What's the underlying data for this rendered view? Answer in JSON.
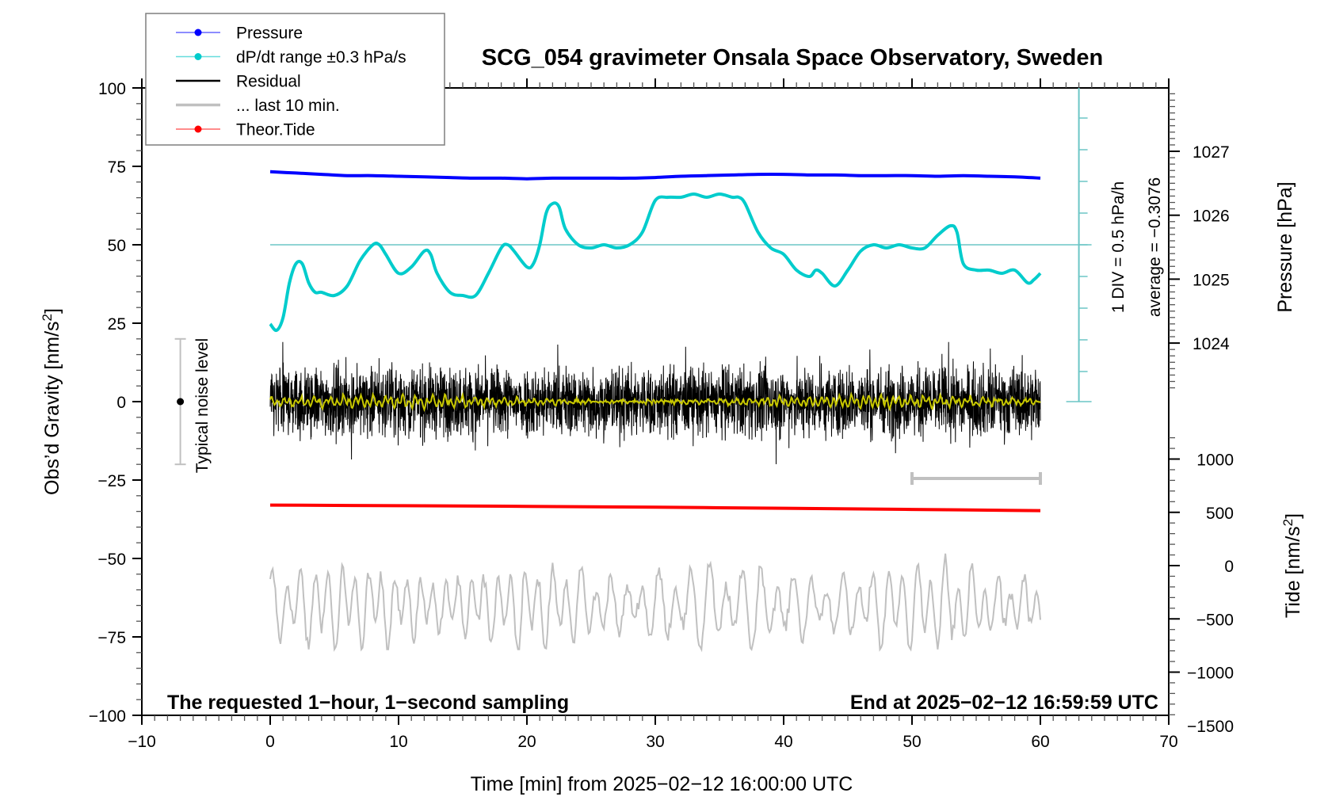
{
  "chart_data": {
    "type": "line",
    "title": "SCG_054 gravimeter Onsala Space Observatory, Sweden",
    "xlabel": "Time [min] from 2025−02−12 16:00:00 UTC",
    "ylabel_left": "Obs’d Gravity [nm/s²]",
    "ylabel_right_pressure": "Pressure [hPa]",
    "ylabel_right_tide": "Tide [nm/s²]",
    "xlim": [
      -10,
      70
    ],
    "ylim": [
      -100,
      100
    ],
    "x_ticks": [
      -10,
      0,
      10,
      20,
      30,
      40,
      50,
      60,
      70
    ],
    "x_tick_labels": [
      "−10",
      "0",
      "10",
      "20",
      "30",
      "40",
      "50",
      "60",
      "70"
    ],
    "y_ticks": [
      100,
      75,
      50,
      25,
      0,
      -25,
      -50,
      -75,
      -100
    ],
    "y_tick_labels": [
      "100",
      "75",
      "50",
      "25",
      "0",
      "−25",
      "−50",
      "−75",
      "−100"
    ],
    "pressure_axis": {
      "ticks": [
        1027,
        1026,
        1025,
        1024
      ],
      "tick_labels": [
        "1027",
        "1026",
        "1025",
        "1024"
      ]
    },
    "tide_axis": {
      "ticks": [
        1000,
        500,
        0,
        -500,
        -1000,
        -1500
      ],
      "tick_labels": [
        "1000",
        "500",
        "0",
        "−500",
        "−1000",
        "−1500"
      ]
    },
    "grid": false,
    "legend_position": "top-left",
    "legend": [
      {
        "label": "Pressure",
        "color": "#0000ff",
        "marker": "dot"
      },
      {
        "label": "dP/dt range ±0.3 hPa/s",
        "color": "#00cccc",
        "marker": "dot"
      },
      {
        "label": "Residual",
        "color": "#000000",
        "marker": "line"
      },
      {
        "label": "... last 10 min.",
        "color": "#c0c0c0",
        "marker": "line"
      },
      {
        "label": "Theor.Tide",
        "color": "#ff0000",
        "marker": "dot"
      }
    ],
    "annotations": {
      "bottom_left": "The requested 1−hour, 1−second sampling",
      "bottom_right": "End at 2025−02−12 16:59:59 UTC",
      "dpdt_scale": "1 DIV = 0.5 hPa/h",
      "dpdt_average": "average = −0.3076",
      "noise_label": "Typical noise level"
    },
    "noise_level": {
      "x": -7,
      "center": 0,
      "half_range": 20
    },
    "last10_bar": {
      "x_start": 50,
      "x_end": 60,
      "y": -24.5
    },
    "series": [
      {
        "name": "Pressure",
        "unit": "hPa",
        "color": "#0000ff",
        "x": [
          0,
          2,
          4,
          6,
          8,
          10,
          12,
          14,
          16,
          18,
          20,
          22,
          24,
          26,
          28,
          30,
          32,
          34,
          36,
          38,
          40,
          42,
          44,
          46,
          48,
          50,
          52,
          54,
          56,
          58,
          60
        ],
        "values": [
          1026.68,
          1026.66,
          1026.64,
          1026.62,
          1026.62,
          1026.61,
          1026.6,
          1026.59,
          1026.58,
          1026.58,
          1026.57,
          1026.58,
          1026.58,
          1026.58,
          1026.58,
          1026.59,
          1026.61,
          1026.62,
          1026.63,
          1026.64,
          1026.64,
          1026.63,
          1026.63,
          1026.62,
          1026.62,
          1026.62,
          1026.61,
          1026.62,
          1026.61,
          1026.6,
          1026.58
        ]
      },
      {
        "name": "dP/dt",
        "unit": "DIV (1 DIV = 0.5 hPa/h), relative to zero line at gravity 50",
        "color": "#00cccc",
        "zero_line_gravity": 50,
        "x": [
          0,
          0.5,
          1,
          1.5,
          2,
          2.5,
          3,
          3.5,
          4,
          5,
          6,
          7,
          8,
          8.5,
          9,
          10,
          11,
          12,
          12.5,
          13,
          14,
          15,
          16,
          17,
          18,
          18.5,
          19,
          20,
          20.5,
          21,
          21.5,
          22,
          22.5,
          23,
          24,
          25,
          26,
          27,
          28,
          29,
          30,
          31,
          32,
          33,
          34,
          35,
          36,
          36.5,
          37,
          38,
          39,
          40,
          41,
          42,
          42.5,
          43,
          44,
          45,
          46,
          47,
          48,
          49,
          50,
          51,
          52,
          53,
          53.5,
          54,
          55,
          56,
          57,
          58,
          59,
          59.5,
          60
        ],
        "values": [
          -2.5,
          -2.7,
          -2.3,
          -1.2,
          -0.6,
          -0.6,
          -1.2,
          -1.5,
          -1.5,
          -1.6,
          -1.3,
          -0.5,
          0.0,
          0.0,
          -0.3,
          -0.9,
          -0.7,
          -0.2,
          -0.3,
          -0.9,
          -1.5,
          -1.6,
          -1.6,
          -0.9,
          -0.1,
          0.0,
          -0.2,
          -0.7,
          -0.6,
          0.0,
          1.0,
          1.3,
          1.2,
          0.5,
          0.0,
          -0.1,
          0.0,
          -0.1,
          0.0,
          0.4,
          1.4,
          1.5,
          1.5,
          1.6,
          1.5,
          1.6,
          1.5,
          1.5,
          1.3,
          0.4,
          -0.1,
          -0.3,
          -0.8,
          -1.0,
          -0.8,
          -0.9,
          -1.3,
          -0.8,
          -0.2,
          0.0,
          -0.1,
          0.0,
          -0.1,
          -0.1,
          0.3,
          0.6,
          0.4,
          -0.6,
          -0.8,
          -0.8,
          -0.9,
          -0.8,
          -1.2,
          -1.1,
          -0.9
        ]
      },
      {
        "name": "Residual",
        "unit": "nm/s²",
        "color": "#000000",
        "description": "1-second residual noise, approx. ±10 nm/s² around 0, extremes about +19 / −21",
        "x_range": [
          0,
          60
        ],
        "mean": 0,
        "typical_amplitude": 10,
        "max": 19,
        "min": -21
      },
      {
        "name": "Residual (smoothed)",
        "unit": "nm/s²",
        "color": "#c8c800",
        "description": "smoothed residual, approx. ±3 nm/s² around 0",
        "x_range": [
          0,
          60
        ],
        "mean": 0,
        "typical_amplitude": 2.5
      },
      {
        "name": "Theor.Tide",
        "unit": "nm/s²",
        "color": "#ff0000",
        "x": [
          0,
          10,
          20,
          30,
          40,
          50,
          60
        ],
        "values": [
          568,
          562,
          556,
          548,
          538,
          527,
          516
        ]
      },
      {
        "name": "... last 10 min.",
        "unit": "nm/s²",
        "color": "#c0c0c0",
        "description": "last 10 minutes of residual (0–10 min shown stretched over 0–60), oscillation approx. ±15 around −65",
        "x_range": [
          0,
          60
        ],
        "center": -65,
        "typical_amplitude": 10,
        "max": -45,
        "min": -79
      }
    ]
  }
}
